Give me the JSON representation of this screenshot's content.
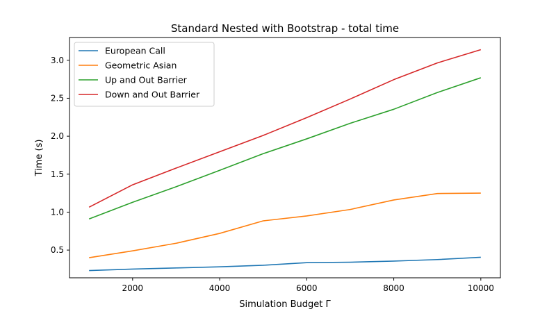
{
  "chart_data": {
    "type": "line",
    "title": "Standard Nested with Bootstrap - total time",
    "xlabel": "Simulation Budget Γ",
    "ylabel": "Time (s)",
    "xlim": [
      550,
      10450
    ],
    "ylim": [
      0.135,
      3.3
    ],
    "xticks": [
      2000,
      4000,
      6000,
      8000,
      10000
    ],
    "yticks": [
      0.5,
      1.0,
      1.5,
      2.0,
      2.5,
      3.0
    ],
    "xtick_labels": [
      "2000",
      "4000",
      "6000",
      "8000",
      "10000"
    ],
    "ytick_labels": [
      "0.5",
      "1.0",
      "1.5",
      "2.0",
      "2.5",
      "3.0"
    ],
    "grid": false,
    "legend_position": "top-left",
    "x": [
      1000,
      2000,
      3000,
      4000,
      5000,
      6000,
      7000,
      8000,
      9000,
      10000
    ],
    "series": [
      {
        "name": "European Call",
        "color": "#1f77b4",
        "values": [
          0.23,
          0.25,
          0.265,
          0.28,
          0.3,
          0.335,
          0.34,
          0.355,
          0.375,
          0.405
        ]
      },
      {
        "name": "Geometric Asian",
        "color": "#ff7f0e",
        "values": [
          0.4,
          0.49,
          0.59,
          0.72,
          0.885,
          0.95,
          1.035,
          1.16,
          1.245,
          1.25
        ]
      },
      {
        "name": "Up and Out Barrier",
        "color": "#2ca02c",
        "values": [
          0.91,
          1.13,
          1.335,
          1.55,
          1.77,
          1.965,
          2.17,
          2.355,
          2.575,
          2.77
        ]
      },
      {
        "name": "Down and Out Barrier",
        "color": "#d62728",
        "values": [
          1.065,
          1.36,
          1.58,
          1.795,
          2.01,
          2.245,
          2.49,
          2.745,
          2.965,
          3.14
        ]
      }
    ]
  }
}
